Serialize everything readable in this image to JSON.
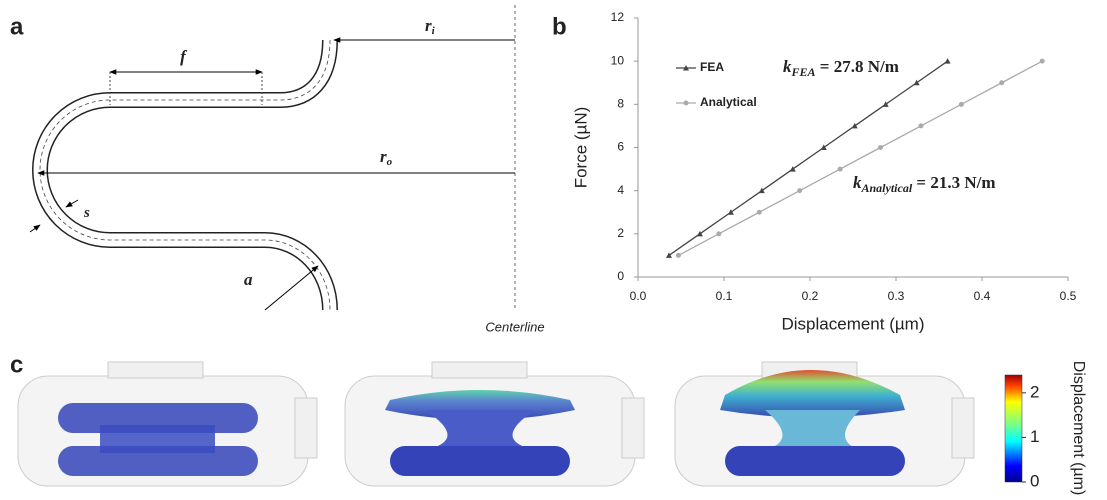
{
  "panel_labels": [
    "a",
    "b",
    "c"
  ],
  "diagram": {
    "labels": [
      {
        "main": "f"
      },
      {
        "main": "r",
        "sub": "i"
      },
      {
        "main": "r",
        "sub": "o"
      },
      {
        "main": "s"
      },
      {
        "main": "a"
      }
    ],
    "centerline": "Centerline"
  },
  "chart_data": {
    "type": "line",
    "xlabel": "Displacement (µm)",
    "ylabel": "Force (µN)",
    "xlim": [
      0,
      0.5
    ],
    "xticks": [
      {
        "value": 0,
        "label": "0.0"
      },
      0.1,
      0.2,
      0.3,
      0.4,
      0.5
    ],
    "ylim": [
      0,
      12
    ],
    "yticks": [
      0,
      2,
      4,
      6,
      8,
      10,
      12
    ],
    "grid": false,
    "legend": "upper left",
    "series": [
      {
        "name": "FEA",
        "color": "#444444",
        "marker": "triangle",
        "x": [
          0.036,
          0.072,
          0.108,
          0.144,
          0.18,
          0.216,
          0.252,
          0.288,
          0.324,
          0.36
        ],
        "values": [
          1,
          2,
          3,
          4,
          5,
          6,
          7,
          8,
          9,
          10
        ]
      },
      {
        "name": "Analytical",
        "color": "#aaaaaa",
        "marker": "circle",
        "x": [
          0.047,
          0.094,
          0.141,
          0.188,
          0.235,
          0.282,
          0.329,
          0.376,
          0.423,
          0.47
        ],
        "values": [
          1,
          2,
          3,
          4,
          5,
          6,
          7,
          8,
          9,
          10
        ]
      }
    ],
    "annotations": [
      {
        "k": "k",
        "sub": "FEA",
        "rest": " = 27.8 N/m"
      },
      {
        "k": "k",
        "sub": "Analytical",
        "rest": " = 21.3 N/m"
      }
    ]
  },
  "colorbar": {
    "label": "Displacement (µm)",
    "clim": [
      0,
      2.4
    ],
    "ticks": [
      0,
      1,
      2
    ]
  }
}
